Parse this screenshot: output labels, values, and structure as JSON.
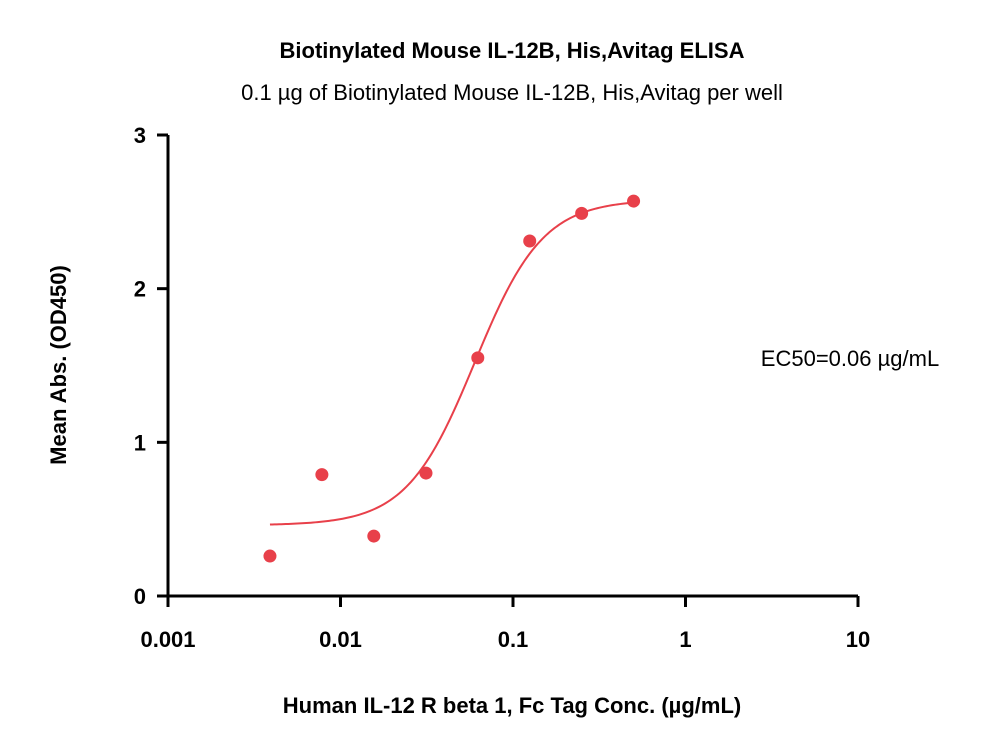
{
  "chart_data": {
    "type": "scatter",
    "title": "Biotinylated Mouse IL-12B, His,Avitag ELISA",
    "subtitle": "0.1 µg of Biotinylated Mouse IL-12B, His,Avitag per well",
    "xlabel": "Human IL-12 R beta 1, Fc Tag Conc. (µg/mL)",
    "ylabel": "Mean Abs. (OD450)",
    "xscale": "log",
    "xlim": [
      0.001,
      10
    ],
    "ylim": [
      0,
      3
    ],
    "x_ticks": [
      0.001,
      0.01,
      0.1,
      1,
      10
    ],
    "x_tick_labels": [
      "0.001",
      "0.01",
      "0.1",
      "1",
      "10"
    ],
    "y_ticks": [
      0,
      1,
      2,
      3
    ],
    "y_tick_labels": [
      "0",
      "1",
      "2",
      "3"
    ],
    "grid": false,
    "series": [
      {
        "color": "#e8404a",
        "x": [
          0.0039,
          0.0078,
          0.0156,
          0.0313,
          0.0625,
          0.125,
          0.25,
          0.5
        ],
        "y": [
          0.26,
          0.79,
          0.39,
          0.8,
          1.55,
          2.31,
          2.49,
          2.57
        ]
      }
    ],
    "fit_curve": {
      "type": "4PL",
      "color": "#e8404a",
      "bottom": 0.46,
      "top": 2.58,
      "ec50": 0.06,
      "hill": 2.2,
      "x_range": [
        0.0039,
        0.5
      ]
    },
    "annotation": "EC50=0.06 µg/mL"
  }
}
